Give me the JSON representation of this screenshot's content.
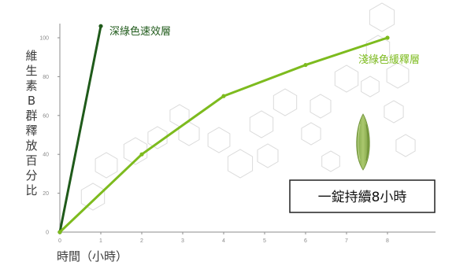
{
  "chart_data": {
    "type": "line",
    "title": "",
    "xlabel": "時間（小時）",
    "ylabel": "維生素B群釋放百分比",
    "xlim": [
      0,
      8
    ],
    "ylim": [
      0,
      100
    ],
    "x_ticks": [
      0,
      1,
      2,
      3,
      4,
      5,
      6,
      7,
      8
    ],
    "y_ticks": [
      0,
      20,
      40,
      60,
      80,
      100
    ],
    "grid": false,
    "legend": "inline-labels",
    "series": [
      {
        "name": "深綠色速效層",
        "color": "#1f5a1a",
        "x": [
          0,
          1
        ],
        "y": [
          0,
          106
        ]
      },
      {
        "name": "淺綠色緩釋層",
        "color": "#7dbb1e",
        "x": [
          0,
          2,
          4,
          6,
          8
        ],
        "y": [
          0,
          40,
          70,
          86,
          100
        ]
      }
    ],
    "annotation": "一錠持續8小時",
    "background_pattern": "hexagon-outlines",
    "illustration": "green-capsule-tablet"
  }
}
